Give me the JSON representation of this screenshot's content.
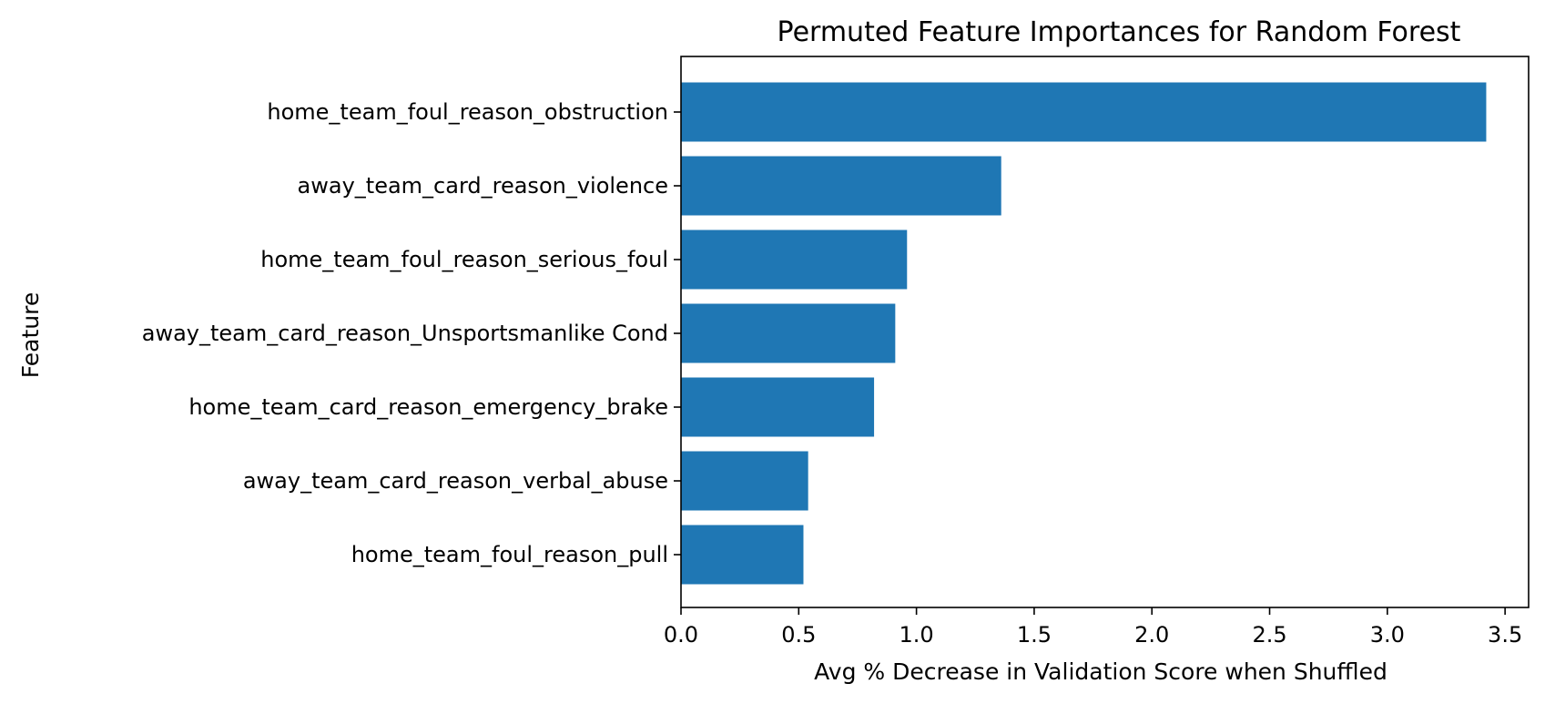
{
  "chart_data": {
    "type": "bar",
    "orientation": "horizontal",
    "title": "Permuted Feature Importances for Random Forest",
    "xlabel": "Avg % Decrease in Validation Score when Shuffled",
    "ylabel": "Feature",
    "categories": [
      "home_team_foul_reason_obstruction",
      "away_team_card_reason_violence",
      "home_team_foul_reason_serious_foul",
      "away_team_card_reason_Unsportsmanlike Cond",
      "home_team_card_reason_emergency_brake",
      "away_team_card_reason_verbal_abuse",
      "home_team_foul_reason_pull"
    ],
    "values": [
      3.42,
      1.36,
      0.96,
      0.91,
      0.82,
      0.54,
      0.52
    ],
    "xlim": [
      0,
      3.6
    ],
    "xticks": [
      0.0,
      0.5,
      1.0,
      1.5,
      2.0,
      2.5,
      3.0,
      3.5
    ],
    "xtick_labels": [
      "0.0",
      "0.5",
      "1.0",
      "1.5",
      "2.0",
      "2.5",
      "3.0",
      "3.5"
    ],
    "grid": false,
    "legend": "none",
    "bar_color": "#1f77b4"
  }
}
